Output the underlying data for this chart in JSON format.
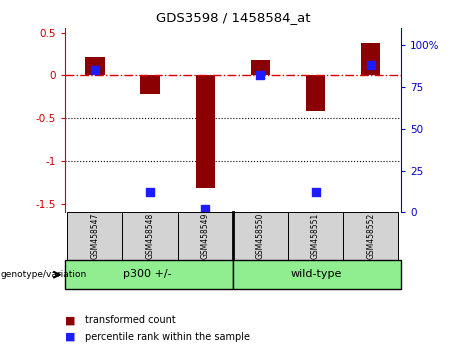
{
  "title": "GDS3598 / 1458584_at",
  "samples": [
    "GSM458547",
    "GSM458548",
    "GSM458549",
    "GSM458550",
    "GSM458551",
    "GSM458552"
  ],
  "bar_values": [
    0.22,
    -0.22,
    -1.32,
    0.18,
    -0.42,
    0.38
  ],
  "percentile_ranks": [
    85,
    12,
    2,
    82,
    12,
    88
  ],
  "ylim_left": [
    -1.6,
    0.55
  ],
  "ylim_right": [
    0,
    110
  ],
  "yticks_left": [
    0.5,
    0.0,
    -0.5,
    -1.0,
    -1.5
  ],
  "ytick_labels_left": [
    "0.5",
    "0",
    "-0.5",
    "-1",
    "-1.5"
  ],
  "yticks_right": [
    100,
    75,
    50,
    25,
    0
  ],
  "ytick_labels_right": [
    "100%",
    "75",
    "50",
    "25",
    "0"
  ],
  "bar_color": "#8B0000",
  "dot_color": "#1C1CFF",
  "hline_color": "#DD0000",
  "dotted_color": "#000000",
  "group1_label": "p300 +/-",
  "group2_label": "wild-type",
  "group1_color": "#90EE90",
  "group2_color": "#90EE90",
  "genotype_label": "genotype/variation",
  "legend_bar_label": "transformed count",
  "legend_dot_label": "percentile rank within the sample",
  "cell_bg_color": "#D3D3D3",
  "tick_color_left": "#CC0000",
  "tick_color_right": "#0000CC",
  "bar_width": 0.35,
  "dot_size": 30
}
